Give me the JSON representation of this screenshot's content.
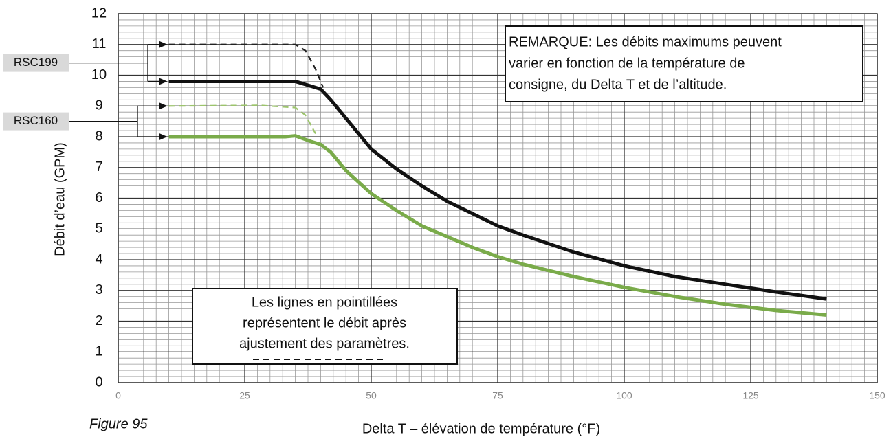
{
  "chart_data": {
    "type": "line",
    "xlabel": "Delta T – élévation de température (°F)",
    "ylabel": "Débit d’eau (GPM)",
    "caption": "Figure 95",
    "xlim": [
      0,
      150
    ],
    "xticks": [
      0,
      25,
      50,
      75,
      100,
      125,
      150
    ],
    "ylim": [
      0,
      12
    ],
    "yticks": [
      0,
      1,
      2,
      3,
      4,
      5,
      6,
      7,
      8,
      9,
      10,
      11,
      12
    ],
    "grid": true,
    "series": [
      {
        "dashed": true,
        "color": "#222222",
        "x": [
          10,
          35,
          37,
          39,
          40.5
        ],
        "values": [
          11,
          11,
          10.8,
          10.2,
          9.6
        ]
      },
      {
        "name": "RSC199",
        "color": "#111111",
        "x": [
          10,
          35,
          38,
          40,
          42,
          45,
          50,
          55,
          60,
          65,
          70,
          75,
          80,
          90,
          100,
          110,
          120,
          130,
          140
        ],
        "values": [
          9.8,
          9.8,
          9.65,
          9.55,
          9.2,
          8.6,
          7.6,
          6.95,
          6.4,
          5.9,
          5.5,
          5.1,
          4.8,
          4.25,
          3.8,
          3.45,
          3.2,
          2.95,
          2.72
        ]
      },
      {
        "dashed": true,
        "color": "#9cc46c",
        "x": [
          10,
          28,
          35,
          37,
          39
        ],
        "values": [
          9,
          9.02,
          8.95,
          8.7,
          8.1
        ]
      },
      {
        "name": "RSC160",
        "color": "#7aab4a",
        "x": [
          10,
          33,
          35,
          38,
          40,
          42,
          45,
          50,
          55,
          60,
          65,
          70,
          75,
          80,
          90,
          100,
          110,
          120,
          130,
          140
        ],
        "values": [
          8,
          8,
          8.03,
          7.85,
          7.75,
          7.5,
          6.9,
          6.15,
          5.6,
          5.1,
          4.75,
          4.4,
          4.1,
          3.85,
          3.45,
          3.1,
          2.8,
          2.55,
          2.35,
          2.2
        ]
      }
    ],
    "notes": [
      {
        "lines": [
          "REMARQUE: Les débits maximums peuvent",
          "varier en fonction de la température de",
          "consigne, du Delta T et de l’altitude."
        ]
      },
      {
        "lines": [
          "Les lignes en pointillées",
          "représentent le débit après",
          "ajustement des paramètres."
        ]
      }
    ]
  }
}
